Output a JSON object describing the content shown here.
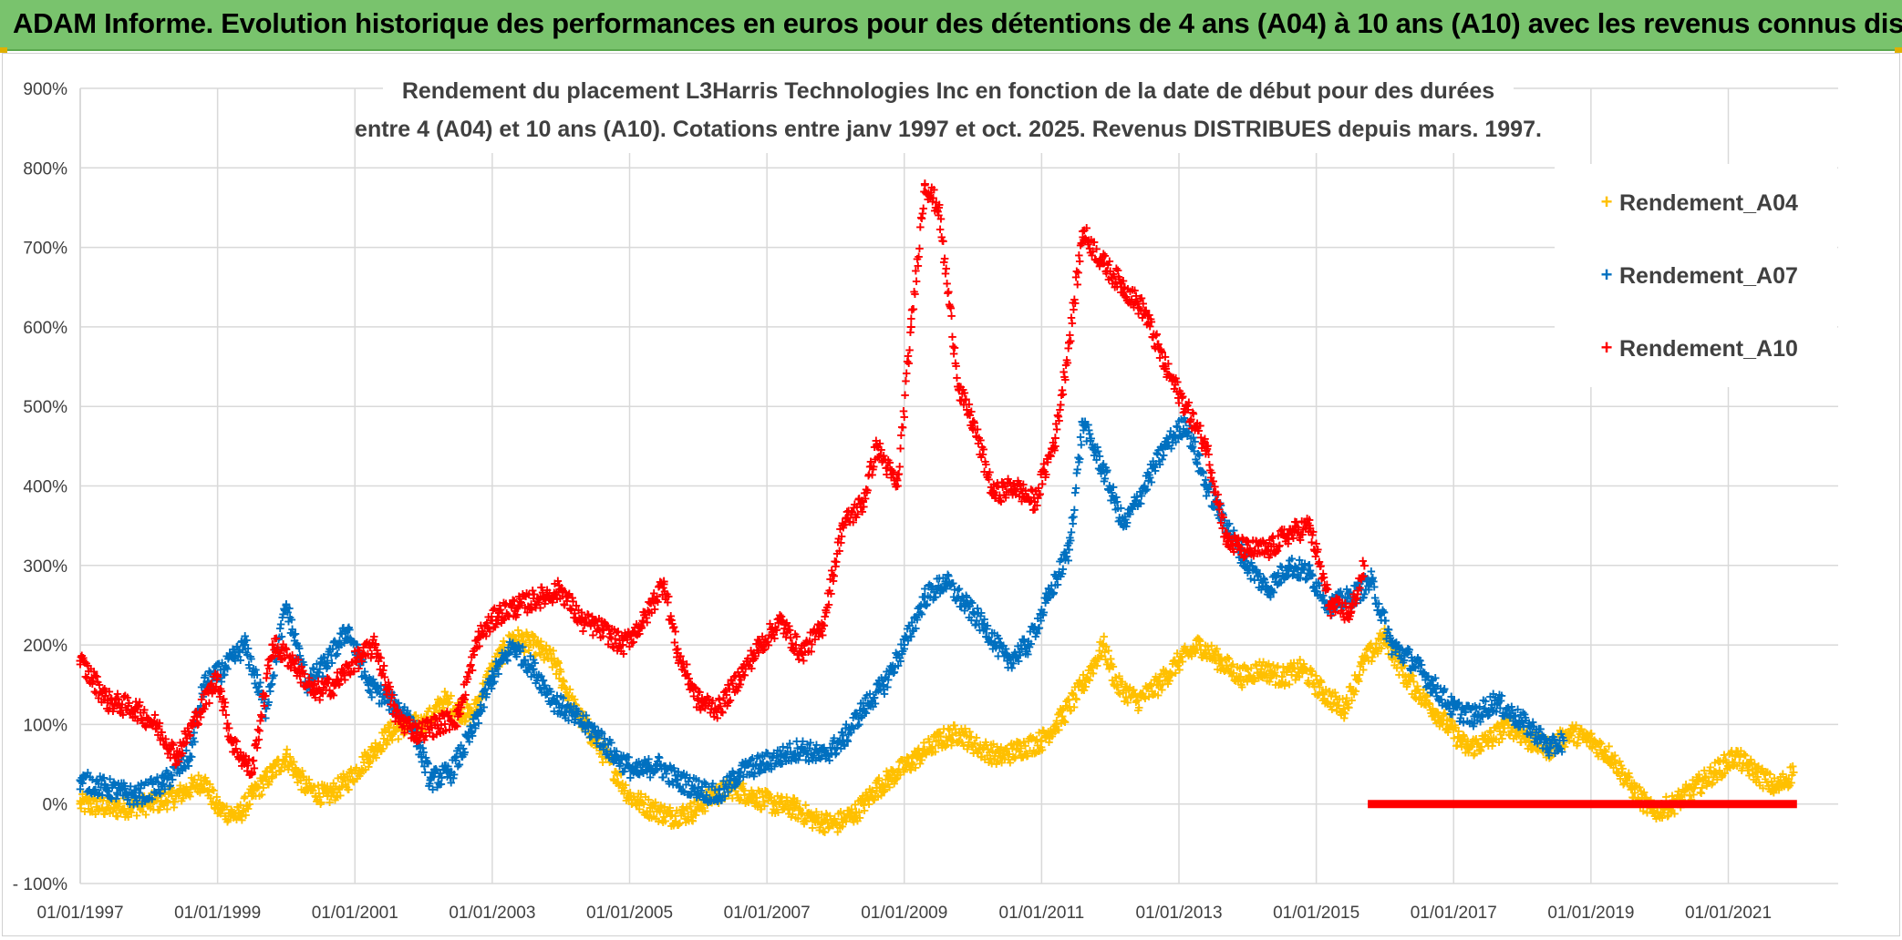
{
  "banner": {
    "title": "ADAM Informe. Evolution historique des performances en euros pour des détentions de 4 ans (A04) à 10 ans (A10) avec les revenus connus distribués"
  },
  "colors": {
    "banner": "#79c36d",
    "A04": "#ffc000",
    "A07": "#0070c0",
    "A10": "#ff0000"
  },
  "chart_data": {
    "type": "scatter",
    "title_lines": [
      "Rendement du placement L3Harris Technologies Inc en fonction de la date de début pour des durées",
      "entre 4 (A04) et 10 ans (A10). Cotations entre janv 1997 et oct. 2025. Revenus DISTRIBUES depuis mars. 1997."
    ],
    "xlabel": "",
    "ylabel": "",
    "x_range": [
      1997.0,
      2022.0
    ],
    "ylim": [
      -100,
      900
    ],
    "y_ticks": [
      -100,
      0,
      100,
      200,
      300,
      400,
      500,
      600,
      700,
      800,
      900
    ],
    "y_tick_labels": [
      "- 100%",
      "0%",
      "100%",
      "200%",
      "300%",
      "400%",
      "500%",
      "600%",
      "700%",
      "800%",
      "900%"
    ],
    "x_ticks": [
      1997,
      1999,
      2001,
      2003,
      2005,
      2007,
      2009,
      2011,
      2013,
      2015,
      2017,
      2019,
      2021
    ],
    "x_tick_labels": [
      "01/01/1997",
      "01/01/1999",
      "01/01/2001",
      "01/01/2003",
      "01/01/2005",
      "01/01/2007",
      "01/01/2009",
      "01/01/2011",
      "01/01/2013",
      "01/01/2015",
      "01/01/2017",
      "01/01/2019",
      "01/01/2021"
    ],
    "legend_position": "right",
    "series": [
      {
        "name": "Rendement_A04",
        "color": "#ffc000",
        "x": [
          1997.0,
          1997.5,
          1998.0,
          1998.4,
          1998.8,
          1999.0,
          1999.3,
          1999.5,
          1999.8,
          2000.0,
          2000.3,
          2000.6,
          2000.9,
          2001.2,
          2001.5,
          2001.8,
          2002.0,
          2002.3,
          2002.7,
          2003.0,
          2003.3,
          2003.6,
          2003.9,
          2004.2,
          2004.5,
          2004.8,
          2005.0,
          2005.3,
          2005.6,
          2005.9,
          2006.2,
          2006.5,
          2006.8,
          2007.1,
          2007.4,
          2007.7,
          2008.0,
          2008.3,
          2008.6,
          2008.9,
          2009.2,
          2009.5,
          2009.8,
          2010.1,
          2010.4,
          2010.7,
          2011.0,
          2011.3,
          2011.6,
          2011.9,
          2012.1,
          2012.4,
          2012.7,
          2013.0,
          2013.3,
          2013.6,
          2013.9,
          2014.2,
          2014.5,
          2014.8,
          2015.1,
          2015.4,
          2015.7,
          2016.0,
          2016.3,
          2016.6,
          2016.9,
          2017.2,
          2017.5,
          2017.8,
          2018.1,
          2018.4,
          2018.7,
          2019.0,
          2019.3,
          2019.6,
          2019.9,
          2020.2,
          2020.5,
          2020.8,
          2021.1,
          2021.4,
          2021.7,
          2021.95
        ],
        "y": [
          0,
          -5,
          0,
          10,
          30,
          -5,
          -15,
          10,
          40,
          60,
          20,
          10,
          30,
          60,
          90,
          100,
          100,
          130,
          110,
          170,
          210,
          200,
          180,
          120,
          80,
          40,
          10,
          -5,
          -15,
          -10,
          10,
          20,
          10,
          0,
          -5,
          -20,
          -25,
          -10,
          20,
          40,
          60,
          80,
          90,
          70,
          60,
          70,
          80,
          110,
          150,
          200,
          150,
          130,
          150,
          180,
          200,
          180,
          160,
          170,
          160,
          170,
          140,
          120,
          180,
          210,
          160,
          130,
          100,
          70,
          80,
          100,
          80,
          70,
          90,
          80,
          60,
          20,
          -10,
          0,
          20,
          40,
          60,
          40,
          20,
          40
        ]
      },
      {
        "name": "Rendement_A07",
        "color": "#0070c0",
        "x": [
          1997.0,
          1997.4,
          1997.8,
          1998.2,
          1998.6,
          1998.8,
          1999.1,
          1999.4,
          1999.7,
          2000.0,
          2000.3,
          2000.6,
          2000.9,
          2001.2,
          2001.5,
          2001.8,
          2002.1,
          2002.4,
          2002.7,
          2003.0,
          2003.3,
          2003.6,
          2003.9,
          2004.2,
          2004.5,
          2004.8,
          2005.1,
          2005.4,
          2005.7,
          2006.0,
          2006.3,
          2006.6,
          2006.9,
          2007.2,
          2007.5,
          2007.8,
          2008.1,
          2008.4,
          2008.7,
          2009.0,
          2009.3,
          2009.6,
          2009.9,
          2010.2,
          2010.5,
          2010.8,
          2011.1,
          2011.4,
          2011.6,
          2011.9,
          2012.2,
          2012.5,
          2012.8,
          2013.1,
          2013.4,
          2013.7,
          2014.0,
          2014.3,
          2014.6,
          2014.9,
          2015.2,
          2015.5,
          2015.8,
          2016.1,
          2016.4,
          2016.7,
          2017.0,
          2017.3,
          2017.6,
          2017.9,
          2018.2,
          2018.4,
          2018.6
        ],
        "y": [
          30,
          20,
          10,
          25,
          60,
          150,
          170,
          200,
          120,
          250,
          150,
          180,
          220,
          150,
          130,
          110,
          30,
          40,
          90,
          160,
          200,
          170,
          130,
          110,
          90,
          60,
          40,
          50,
          30,
          20,
          10,
          40,
          50,
          60,
          70,
          60,
          80,
          120,
          150,
          200,
          260,
          280,
          250,
          220,
          180,
          200,
          260,
          320,
          480,
          420,
          350,
          400,
          450,
          480,
          400,
          350,
          300,
          270,
          300,
          290,
          250,
          260,
          280,
          200,
          180,
          150,
          120,
          110,
          130,
          110,
          90,
          70,
          80
        ]
      },
      {
        "name": "Rendement_A10",
        "color": "#ff0000",
        "x": [
          1997.0,
          1997.4,
          1997.8,
          1998.1,
          1998.4,
          1998.7,
          1999.0,
          1999.2,
          1999.5,
          1999.8,
          2000.1,
          2000.4,
          2000.7,
          2001.0,
          2001.3,
          2001.6,
          2001.9,
          2002.2,
          2002.5,
          2002.8,
          2003.1,
          2003.4,
          2003.7,
          2004.0,
          2004.3,
          2004.6,
          2004.9,
          2005.2,
          2005.5,
          2005.7,
          2006.0,
          2006.3,
          2006.6,
          2006.9,
          2007.2,
          2007.5,
          2007.8,
          2008.1,
          2008.4,
          2008.6,
          2008.9,
          2009.1,
          2009.3,
          2009.5,
          2009.8,
          2010.0,
          2010.3,
          2010.6,
          2010.9,
          2011.2,
          2011.4,
          2011.6,
          2011.9,
          2012.2,
          2012.5,
          2012.8,
          2013.1,
          2013.4,
          2013.7,
          2014.0,
          2014.3,
          2014.6,
          2014.9,
          2015.2,
          2015.5,
          2015.7
        ],
        "y": [
          180,
          130,
          120,
          100,
          60,
          110,
          160,
          80,
          40,
          200,
          180,
          140,
          150,
          180,
          200,
          110,
          90,
          100,
          110,
          210,
          240,
          250,
          260,
          270,
          230,
          220,
          200,
          230,
          280,
          190,
          130,
          120,
          160,
          200,
          230,
          190,
          220,
          350,
          380,
          450,
          400,
          600,
          780,
          750,
          520,
          480,
          390,
          400,
          380,
          460,
          580,
          720,
          680,
          650,
          620,
          550,
          500,
          450,
          330,
          320,
          320,
          340,
          350,
          250,
          240,
          300
        ]
      }
    ]
  },
  "zero_marker": {
    "from": 2015.75,
    "to": 2022.0,
    "y": 0
  }
}
